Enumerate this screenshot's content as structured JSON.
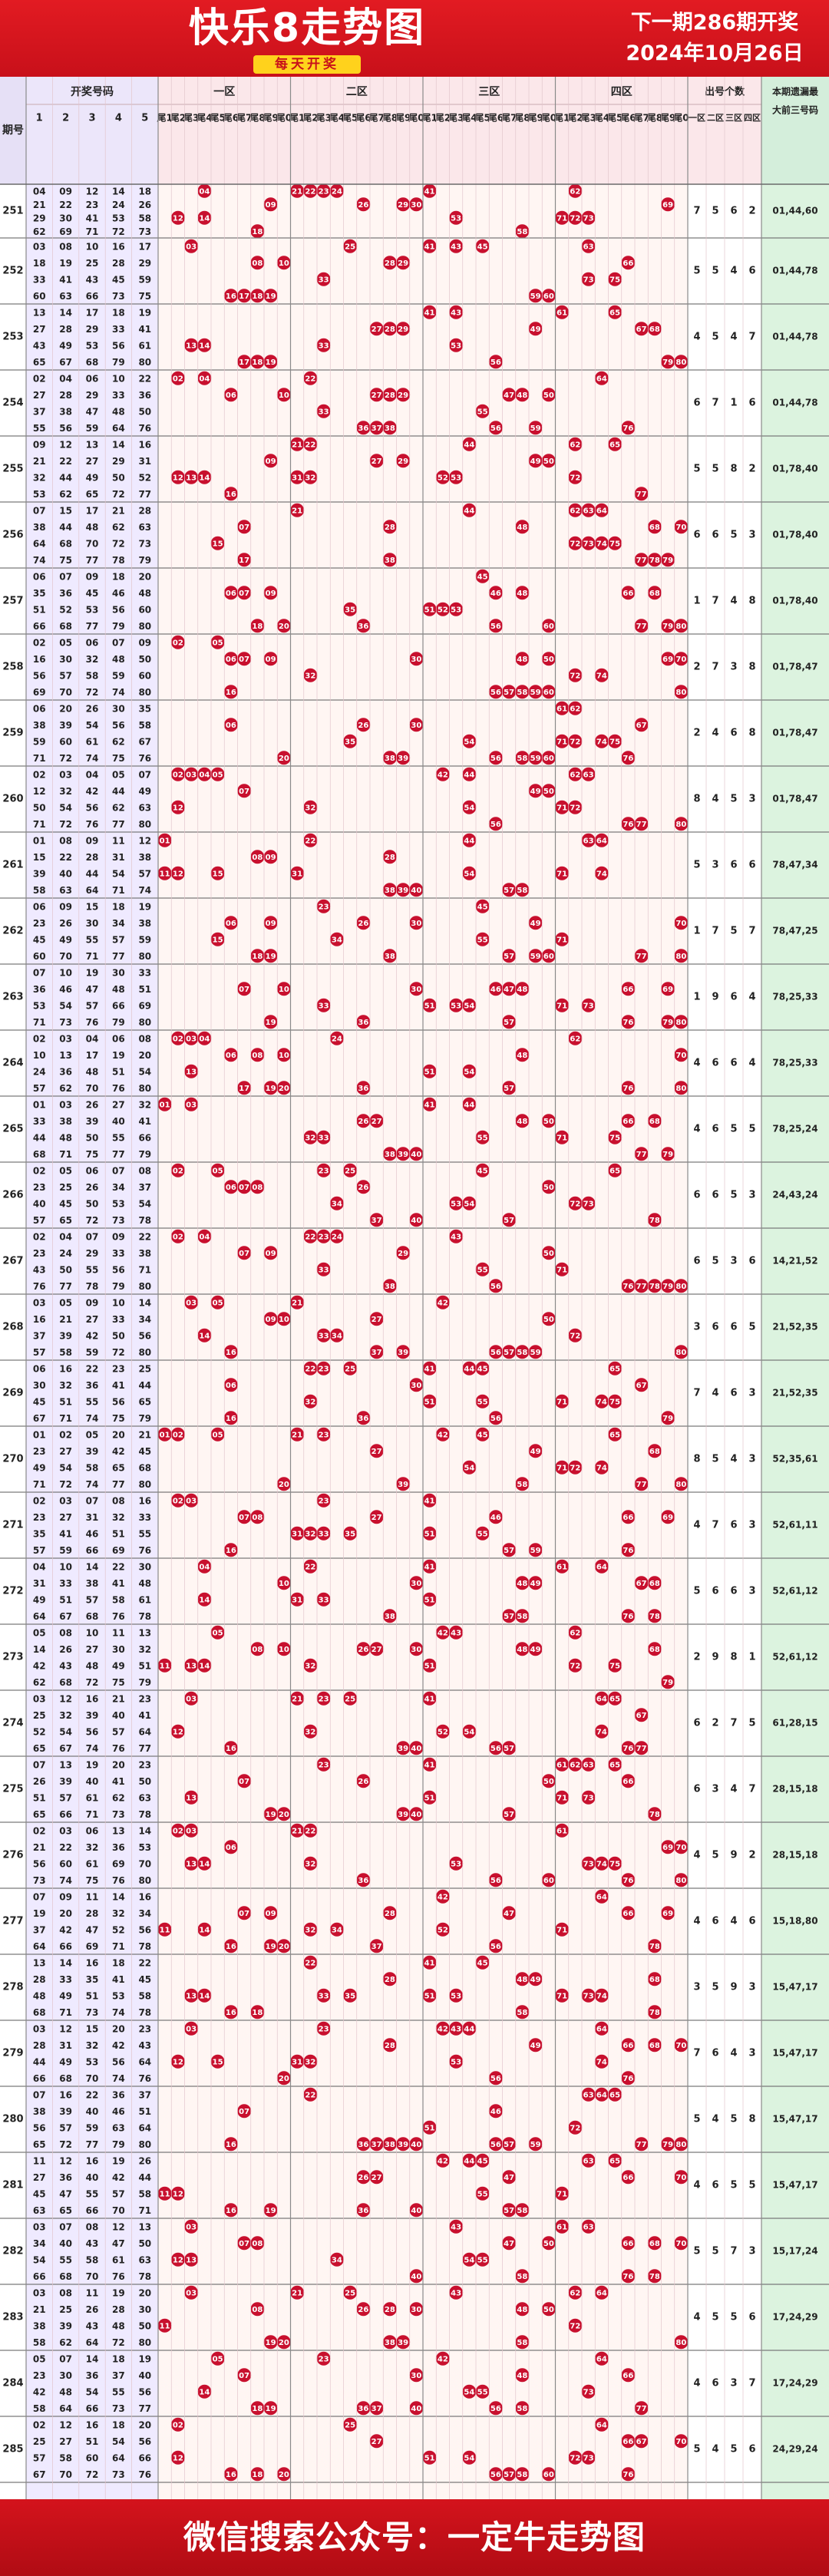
{
  "header": {
    "title": "快乐8走势图",
    "subtitle": "每天开奖",
    "next_line1": "下一期286期开奖",
    "next_line2": "2024年10月26日"
  },
  "table_header": {
    "period": "期号",
    "numbers_group": "开奖号码",
    "number_cols": [
      "1",
      "2",
      "3",
      "4",
      "5"
    ],
    "zones": [
      "一区",
      "二区",
      "三区",
      "四区"
    ],
    "tails": [
      "尾1",
      "尾2",
      "尾3",
      "尾4",
      "尾5",
      "尾6",
      "尾7",
      "尾8",
      "尾9",
      "尾0"
    ],
    "counts_group": "出号个数",
    "count_cols": [
      "一区",
      "二区",
      "三区",
      "四区"
    ],
    "forecast_line1": "本期遗漏最",
    "forecast_line2": "大前三号码"
  },
  "footer": {
    "text": "微信搜索公众号：一定牛走势图"
  },
  "colors": {
    "brand_red": "#d4151c",
    "ball_red": "#c8102e",
    "zone_bg": "#fff6f3",
    "period_bg": "#efeaff",
    "forecast_bg": "#dcf3df"
  },
  "chart_data": {
    "type": "table",
    "title": "快乐8走势图",
    "periods": [
      {
        "id": "251",
        "numbers": [
          4,
          9,
          12,
          14,
          18,
          21,
          22,
          23,
          24,
          26,
          29,
          30,
          41,
          53,
          58,
          62,
          69,
          71,
          72,
          73
        ],
        "counts": [
          7,
          5,
          6,
          2
        ],
        "missing": "01,44,60"
      },
      {
        "id": "252",
        "numbers": [
          3,
          8,
          10,
          16,
          17,
          18,
          19,
          25,
          28,
          29,
          33,
          41,
          43,
          45,
          59,
          60,
          63,
          66,
          73,
          75
        ],
        "counts": [
          5,
          5,
          4,
          6
        ],
        "missing": "01,44,78"
      },
      {
        "id": "253",
        "numbers": [
          13,
          14,
          17,
          18,
          19,
          27,
          28,
          29,
          33,
          41,
          43,
          49,
          53,
          56,
          61,
          65,
          67,
          68,
          79,
          80
        ],
        "counts": [
          4,
          5,
          4,
          7
        ],
        "missing": "01,44,78"
      },
      {
        "id": "254",
        "numbers": [
          2,
          4,
          6,
          10,
          22,
          27,
          28,
          29,
          33,
          36,
          37,
          38,
          47,
          48,
          50,
          55,
          56,
          59,
          64,
          76
        ],
        "counts": [
          6,
          7,
          1,
          6
        ],
        "missing": "01,44,78"
      },
      {
        "id": "255",
        "numbers": [
          9,
          12,
          13,
          14,
          16,
          21,
          22,
          27,
          29,
          31,
          32,
          44,
          49,
          50,
          52,
          53,
          62,
          65,
          72,
          77
        ],
        "counts": [
          5,
          5,
          8,
          2
        ],
        "missing": "01,78,40"
      },
      {
        "id": "256",
        "numbers": [
          7,
          15,
          17,
          21,
          28,
          38,
          44,
          48,
          62,
          63,
          64,
          68,
          70,
          72,
          73,
          74,
          75,
          77,
          78,
          79
        ],
        "counts": [
          6,
          6,
          5,
          3
        ],
        "missing": "01,78,40"
      },
      {
        "id": "257",
        "numbers": [
          6,
          7,
          9,
          18,
          20,
          35,
          36,
          45,
          46,
          48,
          51,
          52,
          53,
          56,
          60,
          66,
          68,
          77,
          79,
          80
        ],
        "counts": [
          1,
          7,
          4,
          8
        ],
        "missing": "01,78,40"
      },
      {
        "id": "258",
        "numbers": [
          2,
          5,
          6,
          7,
          9,
          16,
          30,
          32,
          48,
          50,
          56,
          57,
          58,
          59,
          60,
          69,
          70,
          72,
          74,
          80
        ],
        "counts": [
          2,
          7,
          3,
          8
        ],
        "missing": "01,78,47"
      },
      {
        "id": "259",
        "numbers": [
          6,
          20,
          26,
          30,
          35,
          38,
          39,
          54,
          56,
          58,
          59,
          60,
          61,
          62,
          67,
          71,
          72,
          74,
          75,
          76
        ],
        "counts": [
          2,
          4,
          6,
          8
        ],
        "missing": "01,78,47"
      },
      {
        "id": "260",
        "numbers": [
          2,
          3,
          4,
          5,
          7,
          12,
          32,
          42,
          44,
          49,
          50,
          54,
          56,
          62,
          63,
          71,
          72,
          76,
          77,
          80
        ],
        "counts": [
          8,
          4,
          5,
          3
        ],
        "missing": "01,78,47"
      },
      {
        "id": "261",
        "numbers": [
          1,
          8,
          9,
          11,
          12,
          15,
          22,
          28,
          31,
          38,
          39,
          40,
          44,
          54,
          57,
          58,
          63,
          64,
          71,
          74
        ],
        "counts": [
          5,
          3,
          6,
          6
        ],
        "missing": "78,47,34"
      },
      {
        "id": "262",
        "numbers": [
          6,
          9,
          15,
          18,
          19,
          23,
          26,
          30,
          34,
          38,
          45,
          49,
          55,
          57,
          59,
          60,
          70,
          71,
          77,
          80
        ],
        "counts": [
          1,
          7,
          5,
          7
        ],
        "missing": "78,47,25"
      },
      {
        "id": "263",
        "numbers": [
          7,
          10,
          19,
          30,
          33,
          36,
          46,
          47,
          48,
          51,
          53,
          54,
          57,
          66,
          69,
          71,
          73,
          76,
          79,
          80
        ],
        "counts": [
          1,
          9,
          6,
          4
        ],
        "missing": "78,25,33"
      },
      {
        "id": "264",
        "numbers": [
          2,
          3,
          4,
          6,
          8,
          10,
          13,
          17,
          19,
          20,
          24,
          36,
          48,
          51,
          54,
          57,
          62,
          70,
          76,
          80
        ],
        "counts": [
          4,
          6,
          6,
          4
        ],
        "missing": "78,25,33"
      },
      {
        "id": "265",
        "numbers": [
          1,
          3,
          26,
          27,
          32,
          33,
          38,
          39,
          40,
          41,
          44,
          48,
          50,
          55,
          66,
          68,
          71,
          75,
          77,
          79
        ],
        "counts": [
          4,
          6,
          5,
          5
        ],
        "missing": "78,25,24"
      },
      {
        "id": "266",
        "numbers": [
          2,
          5,
          6,
          7,
          8,
          23,
          25,
          26,
          34,
          37,
          40,
          45,
          50,
          53,
          54,
          57,
          65,
          72,
          73,
          78
        ],
        "counts": [
          6,
          6,
          5,
          3
        ],
        "missing": "24,43,24"
      },
      {
        "id": "267",
        "numbers": [
          2,
          4,
          7,
          9,
          22,
          23,
          24,
          29,
          33,
          38,
          43,
          50,
          55,
          56,
          71,
          76,
          77,
          78,
          79,
          80
        ],
        "counts": [
          6,
          5,
          3,
          6
        ],
        "missing": "14,21,52"
      },
      {
        "id": "268",
        "numbers": [
          3,
          5,
          9,
          10,
          14,
          16,
          21,
          27,
          33,
          34,
          37,
          39,
          42,
          50,
          56,
          57,
          58,
          59,
          72,
          80
        ],
        "counts": [
          3,
          6,
          6,
          5
        ],
        "missing": "21,52,35"
      },
      {
        "id": "269",
        "numbers": [
          6,
          16,
          22,
          23,
          25,
          30,
          32,
          36,
          41,
          44,
          45,
          51,
          55,
          56,
          65,
          67,
          71,
          74,
          75,
          79
        ],
        "counts": [
          7,
          4,
          6,
          3
        ],
        "missing": "21,52,35"
      },
      {
        "id": "270",
        "numbers": [
          1,
          2,
          5,
          20,
          21,
          23,
          27,
          39,
          42,
          45,
          49,
          54,
          58,
          65,
          68,
          71,
          72,
          74,
          77,
          80
        ],
        "counts": [
          8,
          5,
          4,
          3
        ],
        "missing": "52,35,61"
      },
      {
        "id": "271",
        "numbers": [
          2,
          3,
          7,
          8,
          16,
          23,
          27,
          31,
          32,
          33,
          35,
          41,
          46,
          51,
          55,
          57,
          59,
          66,
          69,
          76
        ],
        "counts": [
          4,
          7,
          6,
          3
        ],
        "missing": "52,61,11"
      },
      {
        "id": "272",
        "numbers": [
          4,
          10,
          14,
          22,
          30,
          31,
          33,
          38,
          41,
          48,
          49,
          51,
          57,
          58,
          61,
          64,
          67,
          68,
          76,
          78
        ],
        "counts": [
          5,
          6,
          6,
          3
        ],
        "missing": "52,61,12"
      },
      {
        "id": "273",
        "numbers": [
          5,
          8,
          10,
          11,
          13,
          14,
          26,
          27,
          30,
          32,
          42,
          43,
          48,
          49,
          51,
          62,
          68,
          72,
          75,
          79
        ],
        "counts": [
          2,
          9,
          8,
          1
        ],
        "missing": "52,61,12"
      },
      {
        "id": "274",
        "numbers": [
          3,
          12,
          16,
          21,
          23,
          25,
          32,
          39,
          40,
          41,
          52,
          54,
          56,
          57,
          64,
          65,
          67,
          74,
          76,
          77
        ],
        "counts": [
          6,
          2,
          7,
          5
        ],
        "missing": "61,28,15"
      },
      {
        "id": "275",
        "numbers": [
          7,
          13,
          19,
          20,
          23,
          26,
          39,
          40,
          41,
          50,
          51,
          57,
          61,
          62,
          63,
          65,
          66,
          71,
          73,
          78
        ],
        "counts": [
          6,
          3,
          4,
          7
        ],
        "missing": "28,15,18"
      },
      {
        "id": "276",
        "numbers": [
          2,
          3,
          6,
          13,
          14,
          21,
          22,
          32,
          36,
          53,
          56,
          60,
          61,
          69,
          70,
          73,
          74,
          75,
          76,
          80
        ],
        "counts": [
          4,
          5,
          9,
          2
        ],
        "missing": "28,15,18"
      },
      {
        "id": "277",
        "numbers": [
          7,
          9,
          11,
          14,
          16,
          19,
          20,
          28,
          32,
          34,
          37,
          42,
          47,
          52,
          56,
          64,
          66,
          69,
          71,
          78
        ],
        "counts": [
          4,
          6,
          4,
          6
        ],
        "missing": "15,18,80"
      },
      {
        "id": "278",
        "numbers": [
          13,
          14,
          16,
          18,
          22,
          28,
          33,
          35,
          41,
          45,
          48,
          49,
          51,
          53,
          58,
          68,
          71,
          73,
          74,
          78
        ],
        "counts": [
          3,
          5,
          9,
          3
        ],
        "missing": "15,47,17"
      },
      {
        "id": "279",
        "numbers": [
          3,
          12,
          15,
          20,
          23,
          28,
          31,
          32,
          42,
          43,
          44,
          49,
          53,
          56,
          64,
          66,
          68,
          70,
          74,
          76
        ],
        "counts": [
          7,
          6,
          4,
          3
        ],
        "missing": "15,47,17"
      },
      {
        "id": "280",
        "numbers": [
          7,
          16,
          22,
          36,
          37,
          38,
          39,
          40,
          46,
          51,
          56,
          57,
          59,
          63,
          64,
          65,
          72,
          77,
          79,
          80
        ],
        "counts": [
          5,
          4,
          5,
          8
        ],
        "missing": "15,47,17"
      },
      {
        "id": "281",
        "numbers": [
          11,
          12,
          16,
          19,
          26,
          27,
          36,
          40,
          42,
          44,
          45,
          47,
          55,
          57,
          58,
          63,
          65,
          66,
          70,
          71
        ],
        "counts": [
          4,
          6,
          5,
          5
        ],
        "missing": "15,47,17"
      },
      {
        "id": "282",
        "numbers": [
          3,
          7,
          8,
          12,
          13,
          34,
          40,
          43,
          47,
          50,
          54,
          55,
          58,
          61,
          63,
          66,
          68,
          70,
          76,
          78
        ],
        "counts": [
          5,
          5,
          7,
          3
        ],
        "missing": "15,17,24"
      },
      {
        "id": "283",
        "numbers": [
          3,
          8,
          11,
          19,
          20,
          21,
          25,
          26,
          28,
          30,
          38,
          39,
          43,
          48,
          50,
          58,
          62,
          64,
          72,
          80
        ],
        "counts": [
          4,
          5,
          5,
          6
        ],
        "missing": "17,24,29"
      },
      {
        "id": "284",
        "numbers": [
          5,
          7,
          14,
          18,
          19,
          23,
          30,
          36,
          37,
          40,
          42,
          48,
          54,
          55,
          56,
          58,
          64,
          66,
          73,
          77
        ],
        "counts": [
          4,
          6,
          3,
          7
        ],
        "missing": "17,24,29"
      },
      {
        "id": "285",
        "numbers": [
          2,
          12,
          16,
          18,
          20,
          25,
          27,
          51,
          54,
          56,
          57,
          58,
          60,
          64,
          66,
          67,
          70,
          72,
          73,
          76
        ],
        "counts": [
          5,
          4,
          5,
          6
        ],
        "missing": "24,29,24"
      }
    ]
  }
}
